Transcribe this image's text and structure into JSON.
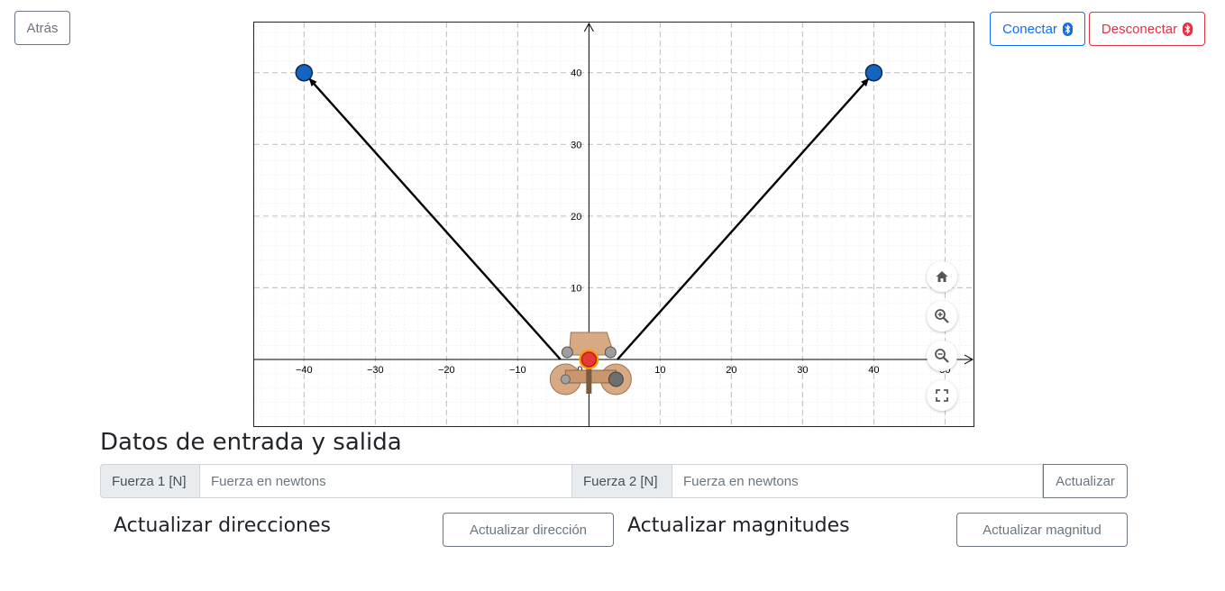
{
  "header": {
    "back_label": "Atrás",
    "connect_label": "Conectar",
    "disconnect_label": "Desconectar",
    "bluetooth_icon": "bluetooth-icon",
    "connect_color": "#0d6efd",
    "disconnect_color": "#dc3545"
  },
  "graph": {
    "x_range": [
      -47,
      54
    ],
    "y_range": [
      -9.3,
      47
    ],
    "x_ticks": [
      "−40",
      "−30",
      "−20",
      "−10",
      "0",
      "10",
      "20",
      "30",
      "40",
      "50"
    ],
    "x_tick_values": [
      -40,
      -30,
      -20,
      -10,
      0,
      10,
      20,
      30,
      40,
      50
    ],
    "y_ticks": [
      "10",
      "20",
      "30",
      "40"
    ],
    "y_tick_values": [
      10,
      20,
      30,
      40
    ],
    "grid": true,
    "vectors": [
      {
        "from": [
          -4,
          0
        ],
        "to": [
          -40,
          40
        ]
      },
      {
        "from": [
          4,
          0
        ],
        "to": [
          40,
          40
        ]
      }
    ],
    "points": [
      {
        "x": -40,
        "y": 40,
        "color": "#1565c0"
      },
      {
        "x": 40,
        "y": 40,
        "color": "#1565c0"
      }
    ],
    "origin_point": {
      "x": 0,
      "y": 0,
      "color": "#e53935"
    },
    "controls": [
      "home-icon",
      "zoom-in-icon",
      "zoom-out-icon",
      "fullscreen-icon"
    ]
  },
  "io": {
    "title": "Datos de entrada y salida",
    "force1_label": "Fuerza 1 [N]",
    "force1_placeholder": "Fuerza en newtons",
    "force2_label": "Fuerza 2 [N]",
    "force2_placeholder": "Fuerza en newtons",
    "update_label": "Actualizar"
  },
  "directions": {
    "title": "Actualizar direcciones",
    "button_label": "Actualizar dirección"
  },
  "magnitudes": {
    "title": "Actualizar magnitudes",
    "button_label": "Actualizar magnitud"
  }
}
